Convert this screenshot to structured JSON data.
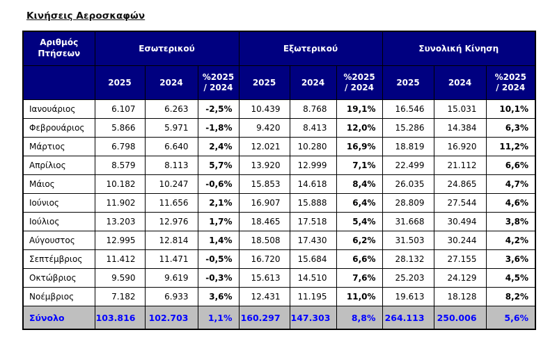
{
  "page_title": "Κινήσεις Αεροσκαφών",
  "colors": {
    "header_bg": "#000080",
    "header_text": "#ffffff",
    "total_bg": "#bfbfbf",
    "total_text": "#0000ff",
    "border": "#000000"
  },
  "table": {
    "corner_header": "Αριθμός Πτήσεων",
    "groups": [
      {
        "label": "Εσωτερικού"
      },
      {
        "label": "Εξωτερικού"
      },
      {
        "label": "Συνολική Κίνηση"
      }
    ],
    "sub_headers": [
      "2025",
      "2024"
    ],
    "pct_header": [
      "%2025",
      "/ 2024"
    ],
    "rows": [
      {
        "month": "Ιανουάριος",
        "values": [
          "6.107",
          "6.263",
          "-2,5%",
          "10.439",
          "8.768",
          "19,1%",
          "16.546",
          "15.031",
          "10,1%"
        ]
      },
      {
        "month": "Φεβρουάριος",
        "values": [
          "5.866",
          "5.971",
          "-1,8%",
          "9.420",
          "8.413",
          "12,0%",
          "15.286",
          "14.384",
          "6,3%"
        ]
      },
      {
        "month": "Μάρτιος",
        "values": [
          "6.798",
          "6.640",
          "2,4%",
          "12.021",
          "10.280",
          "16,9%",
          "18.819",
          "16.920",
          "11,2%"
        ]
      },
      {
        "month": "Απρίλιος",
        "values": [
          "8.579",
          "8.113",
          "5,7%",
          "13.920",
          "12.999",
          "7,1%",
          "22.499",
          "21.112",
          "6,6%"
        ]
      },
      {
        "month": "Μάιος",
        "values": [
          "10.182",
          "10.247",
          "-0,6%",
          "15.853",
          "14.618",
          "8,4%",
          "26.035",
          "24.865",
          "4,7%"
        ]
      },
      {
        "month": "Ιούνιος",
        "values": [
          "11.902",
          "11.656",
          "2,1%",
          "16.907",
          "15.888",
          "6,4%",
          "28.809",
          "27.544",
          "4,6%"
        ]
      },
      {
        "month": "Ιούλιος",
        "values": [
          "13.203",
          "12.976",
          "1,7%",
          "18.465",
          "17.518",
          "5,4%",
          "31.668",
          "30.494",
          "3,8%"
        ]
      },
      {
        "month": "Αύγουστος",
        "values": [
          "12.995",
          "12.814",
          "1,4%",
          "18.508",
          "17.430",
          "6,2%",
          "31.503",
          "30.244",
          "4,2%"
        ]
      },
      {
        "month": "Σεπτέμβριος",
        "values": [
          "11.412",
          "11.471",
          "-0,5%",
          "16.720",
          "15.684",
          "6,6%",
          "28.132",
          "27.155",
          "3,6%"
        ]
      },
      {
        "month": "Οκτώβριος",
        "values": [
          "9.590",
          "9.619",
          "-0,3%",
          "15.613",
          "14.510",
          "7,6%",
          "25.203",
          "24.129",
          "4,5%"
        ]
      },
      {
        "month": "Νοέμβριος",
        "values": [
          "7.182",
          "6.933",
          "3,6%",
          "12.431",
          "11.195",
          "11,0%",
          "19.613",
          "18.128",
          "8,2%"
        ]
      }
    ],
    "total": {
      "label": "Σύνολο",
      "values": [
        "103.816",
        "102.703",
        "1,1%",
        "160.297",
        "147.303",
        "8,8%",
        "264.113",
        "250.006",
        "5,6%"
      ]
    }
  }
}
